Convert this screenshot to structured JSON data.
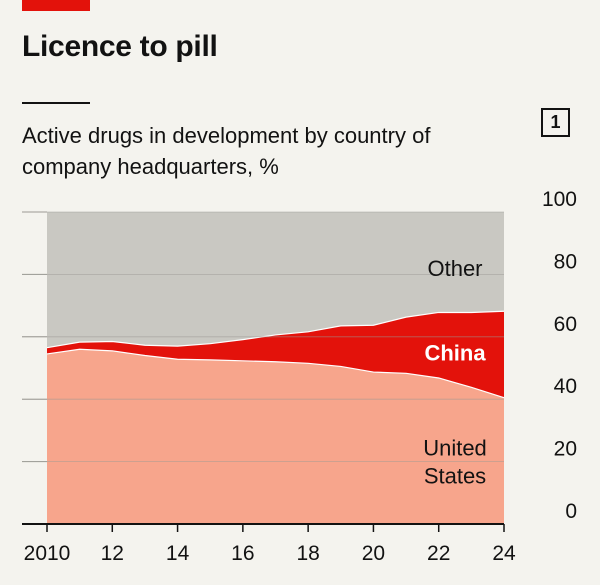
{
  "header": {
    "title": "Licence to pill",
    "subtitle": "Active drugs in development by country of company headquarters, %",
    "badge": "1"
  },
  "colors": {
    "accent": "#e3120b",
    "united_states": "#f7a58c",
    "china": "#e3120b",
    "other": "#c9c8c2",
    "background": "#f4f3ee"
  },
  "chart_data": {
    "type": "area",
    "stacked": true,
    "x": [
      2010,
      2011,
      2012,
      2013,
      2014,
      2015,
      2016,
      2017,
      2018,
      2019,
      2020,
      2021,
      2022,
      2023,
      2024
    ],
    "x_tick_labels": [
      "2010",
      "12",
      "14",
      "16",
      "18",
      "20",
      "22",
      "24"
    ],
    "x_tick_values": [
      2010,
      2012,
      2014,
      2016,
      2018,
      2020,
      2022,
      2024
    ],
    "y_tick_labels": [
      "0",
      "20",
      "40",
      "60",
      "80",
      "100"
    ],
    "ylim": [
      0,
      100
    ],
    "y_axis_side": "right",
    "grid": true,
    "series": [
      {
        "name": "United States",
        "label_lines": [
          "United",
          "States"
        ],
        "color": "#f7a58c",
        "values": [
          54.5,
          56,
          55.5,
          54,
          52.8,
          52.6,
          52.3,
          52,
          51.5,
          50.5,
          48.7,
          48.3,
          46.8,
          43.8,
          40.5
        ]
      },
      {
        "name": "China",
        "label_lines": [
          "China"
        ],
        "color": "#e3120b",
        "values": [
          2,
          2.3,
          3,
          3.3,
          4.2,
          5.2,
          6.8,
          8.6,
          10.1,
          13,
          15,
          18,
          21,
          24,
          27.7
        ]
      },
      {
        "name": "Other",
        "label_lines": [
          "Other"
        ],
        "color": "#c9c8c2",
        "values": [
          43.5,
          41.7,
          41.5,
          42.7,
          43,
          42.2,
          40.9,
          39.4,
          38.4,
          36.5,
          36.3,
          33.7,
          32.2,
          32.2,
          31.8
        ]
      }
    ]
  }
}
